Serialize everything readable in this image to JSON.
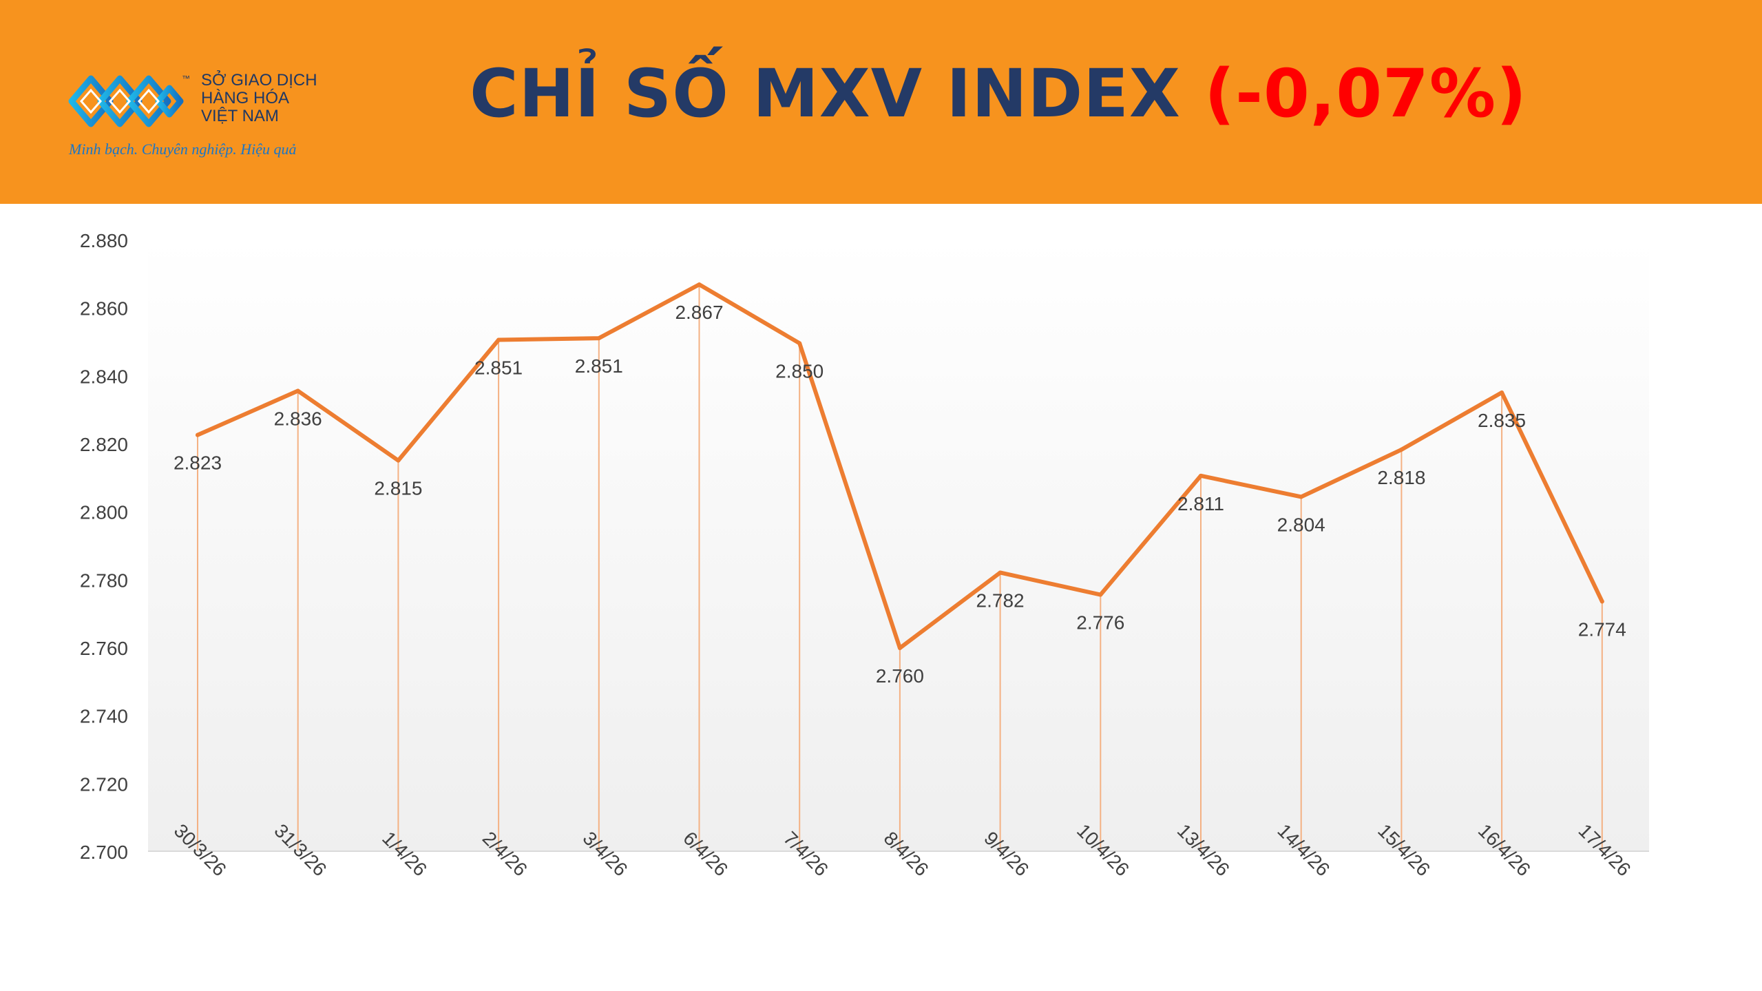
{
  "header": {
    "org_name_lines": [
      "SỞ GIAO DỊCH",
      "HÀNG HÓA",
      "VIỆT NAM"
    ],
    "trademark": "™",
    "slogan": "Minh bạch. Chuyên nghiệp. Hiệu quả",
    "title": "CHỈ SỐ MXV INDEX",
    "change": "(-0,07%)",
    "colors": {
      "banner": "#f7931e",
      "title": "#243a66",
      "change": "#ff0000"
    }
  },
  "chart_data": {
    "type": "line",
    "categories": [
      "30/3/26",
      "31/3/26",
      "1/4/26",
      "2/4/26",
      "3/4/26",
      "6/4/26",
      "7/4/26",
      "8/4/26",
      "9/4/26",
      "10/4/26",
      "13/4/26",
      "14/4/26",
      "15/4/26",
      "16/4/26",
      "17/4/26"
    ],
    "values": [
      2822.5,
      2835.5,
      2815,
      2850.5,
      2851,
      2866.8,
      2849.5,
      2759.8,
      2782,
      2775.5,
      2810.5,
      2804.3,
      2818.2,
      2835,
      2773.5
    ],
    "data_labels": [
      "2.823",
      "2.836",
      "2.815",
      "2.851",
      "2.851",
      "2.867",
      "2.850",
      "2.760",
      "2.782",
      "2.776",
      "2.811",
      "2.804",
      "2.818",
      "2.835",
      "2.774"
    ],
    "yticks": [
      2700,
      2720,
      2740,
      2760,
      2780,
      2800,
      2820,
      2840,
      2860,
      2880
    ],
    "ytick_labels": [
      "2.700",
      "2.720",
      "2.740",
      "2.760",
      "2.780",
      "2.800",
      "2.820",
      "2.840",
      "2.860",
      "2.880"
    ],
    "ylim": [
      2700,
      2880
    ],
    "line_color": "#ed7d31",
    "drop_line_color": "#f4b183",
    "grid": false,
    "legend": "none"
  }
}
